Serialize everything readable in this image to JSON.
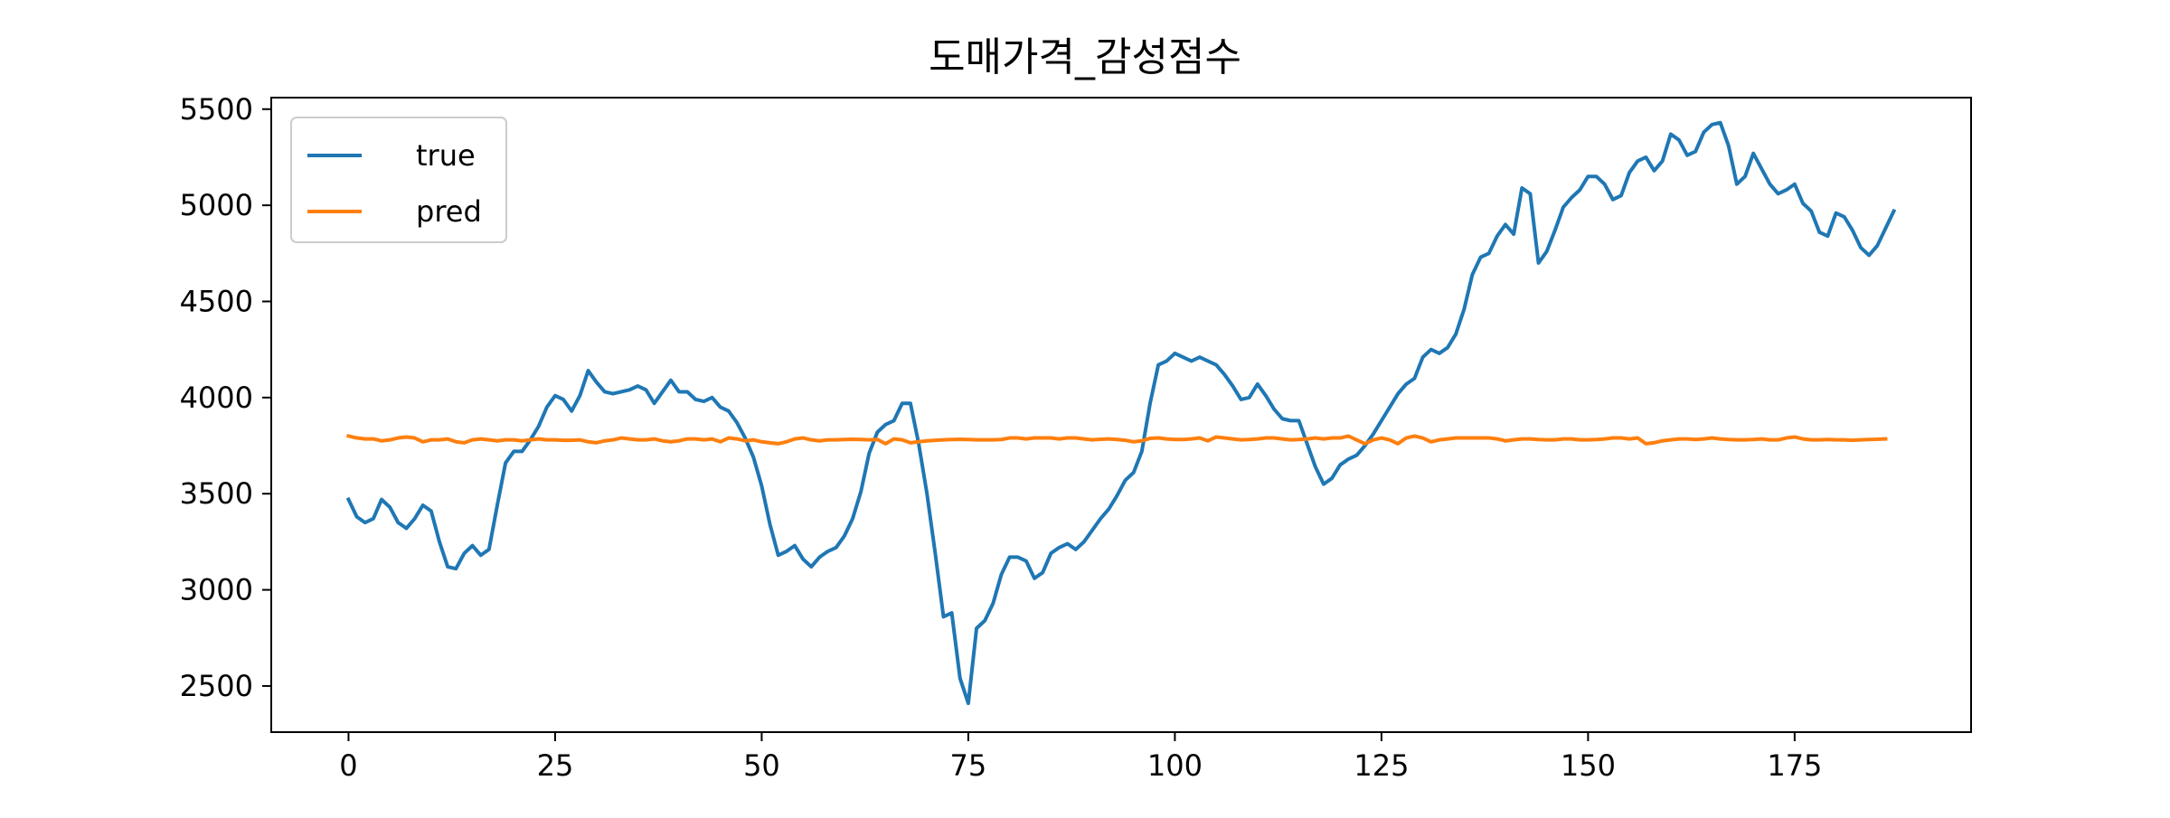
{
  "chart_data": {
    "type": "line",
    "title": "도매가격_감성점수",
    "xlabel": "",
    "ylabel": "",
    "xlim": [
      -9.35,
      196.35
    ],
    "ylim": [
      2260,
      5560
    ],
    "x_ticks": [
      0,
      25,
      50,
      75,
      100,
      125,
      150,
      175
    ],
    "y_ticks": [
      2500,
      3000,
      3500,
      4000,
      4500,
      5000,
      5500
    ],
    "grid": false,
    "legend_position": "upper left",
    "colors": {
      "true": "#1f77b4",
      "pred": "#ff7f0e"
    },
    "series": [
      {
        "name": "true",
        "color": "#1f77b4",
        "values": [
          3470,
          3380,
          3350,
          3370,
          3470,
          3430,
          3350,
          3320,
          3370,
          3440,
          3410,
          3250,
          3120,
          3110,
          3190,
          3230,
          3180,
          3210,
          3440,
          3660,
          3720,
          3720,
          3780,
          3850,
          3950,
          4010,
          3990,
          3930,
          4010,
          4140,
          4080,
          4030,
          4020,
          4030,
          4040,
          4060,
          4040,
          3970,
          4030,
          4090,
          4030,
          4030,
          3990,
          3980,
          4000,
          3950,
          3930,
          3870,
          3790,
          3690,
          3540,
          3340,
          3180,
          3200,
          3230,
          3160,
          3120,
          3170,
          3200,
          3220,
          3280,
          3370,
          3510,
          3710,
          3820,
          3860,
          3880,
          3970,
          3970,
          3760,
          3500,
          3190,
          2860,
          2880,
          2540,
          2410,
          2800,
          2840,
          2930,
          3080,
          3170,
          3170,
          3150,
          3060,
          3090,
          3190,
          3220,
          3240,
          3210,
          3250,
          3310,
          3370,
          3420,
          3490,
          3570,
          3610,
          3720,
          3970,
          4170,
          4190,
          4230,
          4210,
          4190,
          4210,
          4190,
          4170,
          4120,
          4060,
          3990,
          4000,
          4070,
          4010,
          3940,
          3890,
          3880,
          3880,
          3760,
          3640,
          3550,
          3580,
          3650,
          3680,
          3700,
          3750,
          3810,
          3880,
          3950,
          4020,
          4070,
          4100,
          4210,
          4250,
          4230,
          4260,
          4330,
          4460,
          4640,
          4730,
          4750,
          4840,
          4900,
          4850,
          5090,
          5060,
          4700,
          4760,
          4870,
          4990,
          5040,
          5080,
          5150,
          5150,
          5110,
          5030,
          5050,
          5170,
          5230,
          5250,
          5180,
          5230,
          5370,
          5340,
          5260,
          5280,
          5380,
          5420,
          5430,
          5310,
          5110,
          5150,
          5270,
          5190,
          5110,
          5060,
          5080,
          5110,
          5010,
          4970,
          4860,
          4840,
          4960,
          4940,
          4870,
          4780,
          4740,
          4790,
          4880,
          4970
        ]
      },
      {
        "name": "pred",
        "color": "#ff7f0e",
        "values": [
          3800,
          3790,
          3785,
          3785,
          3775,
          3780,
          3790,
          3795,
          3790,
          3770,
          3780,
          3780,
          3785,
          3770,
          3765,
          3780,
          3785,
          3780,
          3775,
          3780,
          3780,
          3775,
          3780,
          3785,
          3780,
          3780,
          3778,
          3778,
          3780,
          3770,
          3765,
          3775,
          3780,
          3790,
          3785,
          3780,
          3780,
          3785,
          3775,
          3770,
          3775,
          3785,
          3785,
          3780,
          3785,
          3770,
          3790,
          3785,
          3775,
          3780,
          3770,
          3765,
          3760,
          3770,
          3785,
          3790,
          3780,
          3775,
          3780,
          3780,
          3782,
          3783,
          3782,
          3780,
          3782,
          3760,
          3785,
          3780,
          3765,
          3770,
          3775,
          3778,
          3780,
          3782,
          3783,
          3782,
          3780,
          3780,
          3780,
          3782,
          3790,
          3790,
          3785,
          3790,
          3790,
          3790,
          3785,
          3790,
          3790,
          3785,
          3780,
          3783,
          3785,
          3782,
          3778,
          3770,
          3775,
          3788,
          3790,
          3785,
          3782,
          3782,
          3785,
          3790,
          3775,
          3795,
          3790,
          3785,
          3780,
          3782,
          3785,
          3790,
          3790,
          3785,
          3780,
          3782,
          3785,
          3790,
          3785,
          3790,
          3790,
          3800,
          3780,
          3760,
          3780,
          3790,
          3780,
          3760,
          3790,
          3800,
          3790,
          3770,
          3780,
          3785,
          3790,
          3790,
          3790,
          3790,
          3790,
          3785,
          3775,
          3780,
          3785,
          3785,
          3782,
          3780,
          3780,
          3785,
          3785,
          3780,
          3780,
          3782,
          3785,
          3790,
          3790,
          3785,
          3790,
          3760,
          3765,
          3775,
          3780,
          3785,
          3785,
          3782,
          3785,
          3790,
          3785,
          3782,
          3780,
          3780,
          3782,
          3785,
          3780,
          3780,
          3790,
          3795,
          3785,
          3780,
          3780,
          3782,
          3780,
          3780,
          3778,
          3780,
          3782,
          3783,
          3785
        ]
      }
    ]
  }
}
